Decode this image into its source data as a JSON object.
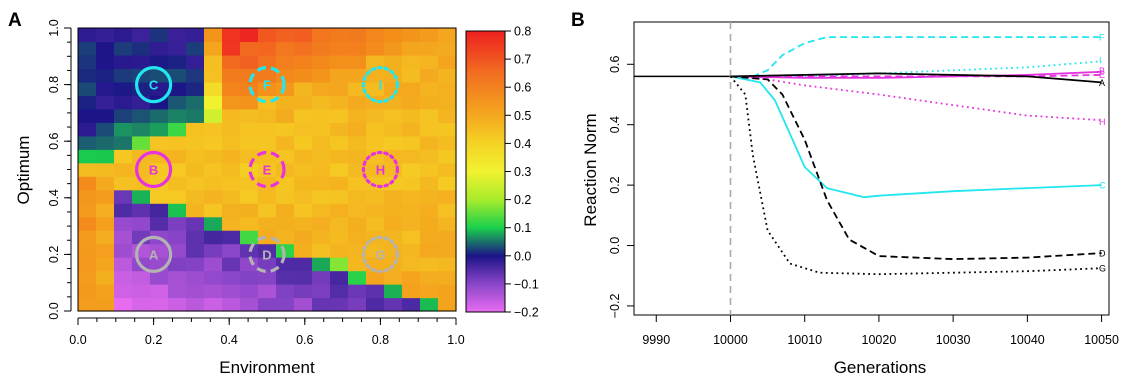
{
  "panels": {
    "a": "A",
    "b": "B"
  },
  "colors": {
    "cyan": "#22e6f0",
    "magenta": "#e633e0",
    "gray": "#b3b3b3",
    "black": "#000000",
    "vline": "#aaaaaa"
  },
  "chart_data": [
    {
      "type": "heatmap",
      "panel": "A",
      "xlabel": "Environment",
      "ylabel": "Optimum",
      "xlim": [
        0,
        1
      ],
      "ylim": [
        0,
        1
      ],
      "xticks": [
        0,
        0.2,
        0.4,
        0.6,
        0.8,
        1.0
      ],
      "xtick_labels": [
        "0.0",
        "0.2",
        "0.4",
        "0.6",
        "0.8",
        "1.0"
      ],
      "yticks": [
        0,
        0.2,
        0.4,
        0.6,
        0.8,
        1.0
      ],
      "ytick_labels": [
        "0.0",
        "0.2",
        "0.4",
        "0.6",
        "0.8",
        "1.0"
      ],
      "grid": "21x21 cells",
      "colorbar": {
        "range": [
          -0.2,
          0.8
        ],
        "ticks": [
          -0.2,
          -0.1,
          0.0,
          0.1,
          0.2,
          0.3,
          0.4,
          0.5,
          0.6,
          0.7,
          0.8
        ],
        "tick_labels": [
          "−0.2",
          "−0.1",
          "0.0",
          "0.1",
          "0.2",
          "0.3",
          "0.4",
          "0.5",
          "0.6",
          "0.7",
          "0.8"
        ]
      },
      "markers": [
        {
          "label": "C",
          "x": 0.2,
          "y": 0.8,
          "color": "cyan",
          "style": "solid"
        },
        {
          "label": "F",
          "x": 0.5,
          "y": 0.8,
          "color": "cyan",
          "style": "dashed"
        },
        {
          "label": "I",
          "x": 0.8,
          "y": 0.8,
          "color": "cyan",
          "style": "dotted"
        },
        {
          "label": "B",
          "x": 0.2,
          "y": 0.5,
          "color": "magenta",
          "style": "solid"
        },
        {
          "label": "E",
          "x": 0.5,
          "y": 0.5,
          "color": "magenta",
          "style": "dashed"
        },
        {
          "label": "H",
          "x": 0.8,
          "y": 0.5,
          "color": "magenta",
          "style": "dotted"
        },
        {
          "label": "A",
          "x": 0.2,
          "y": 0.2,
          "color": "gray",
          "style": "solid"
        },
        {
          "label": "D",
          "x": 0.5,
          "y": 0.2,
          "color": "gray",
          "style": "dashed"
        },
        {
          "label": "G",
          "x": 0.8,
          "y": 0.2,
          "color": "gray",
          "style": "dotted"
        }
      ]
    },
    {
      "type": "line",
      "panel": "B",
      "xlabel": "Generations",
      "ylabel": "Reaction Norm",
      "xlim": [
        9987,
        10051
      ],
      "ylim": [
        -0.23,
        0.74
      ],
      "xticks": [
        9990,
        10000,
        10010,
        10020,
        10030,
        10040,
        10050
      ],
      "xtick_labels": [
        "9990",
        "10000",
        "10010",
        "10020",
        "10030",
        "10040",
        "10050"
      ],
      "yticks": [
        -0.2,
        0.0,
        0.2,
        0.4,
        0.6
      ],
      "ytick_labels": [
        "−0.2",
        "0.0",
        "0.2",
        "0.4",
        "0.6"
      ],
      "vline": 10000,
      "baseline": 0.56,
      "series": [
        {
          "name": "F",
          "color": "cyan",
          "style": "dashed",
          "points": [
            [
              10000,
              0.56
            ],
            [
              10003,
              0.56
            ],
            [
              10005,
              0.58
            ],
            [
              10007,
              0.63
            ],
            [
              10010,
              0.67
            ],
            [
              10013,
              0.69
            ],
            [
              10020,
              0.69
            ],
            [
              10030,
              0.69
            ],
            [
              10040,
              0.69
            ],
            [
              10050,
              0.69
            ]
          ],
          "label_y": 0.69
        },
        {
          "name": "I",
          "color": "cyan",
          "style": "dotted",
          "points": [
            [
              10000,
              0.56
            ],
            [
              10010,
              0.56
            ],
            [
              10020,
              0.57
            ],
            [
              10030,
              0.58
            ],
            [
              10040,
              0.59
            ],
            [
              10050,
              0.61
            ]
          ],
          "label_y": 0.615
        },
        {
          "name": "B",
          "color": "magenta",
          "style": "solid",
          "points": [
            [
              10000,
              0.56
            ],
            [
              10010,
              0.555
            ],
            [
              10020,
              0.555
            ],
            [
              10030,
              0.56
            ],
            [
              10040,
              0.565
            ],
            [
              10050,
              0.575
            ]
          ],
          "label_y": 0.58
        },
        {
          "name": "E",
          "color": "magenta",
          "style": "dashed",
          "points": [
            [
              10000,
              0.56
            ],
            [
              10010,
              0.56
            ],
            [
              10020,
              0.56
            ],
            [
              10030,
              0.56
            ],
            [
              10040,
              0.56
            ],
            [
              10050,
              0.565
            ]
          ],
          "label_y": 0.567
        },
        {
          "name": "A",
          "color": "black",
          "style": "solid",
          "points": [
            [
              10000,
              0.56
            ],
            [
              10010,
              0.565
            ],
            [
              10020,
              0.57
            ],
            [
              10030,
              0.565
            ],
            [
              10040,
              0.56
            ],
            [
              10050,
              0.54
            ]
          ],
          "label_y": 0.54
        },
        {
          "name": "H",
          "color": "magenta",
          "style": "dotted",
          "points": [
            [
              10000,
              0.56
            ],
            [
              10005,
              0.55
            ],
            [
              10010,
              0.53
            ],
            [
              10020,
              0.5
            ],
            [
              10030,
              0.465
            ],
            [
              10040,
              0.43
            ],
            [
              10050,
              0.415
            ]
          ],
          "label_y": 0.41
        },
        {
          "name": "C",
          "color": "cyan",
          "style": "solid",
          "points": [
            [
              10000,
              0.56
            ],
            [
              10004,
              0.54
            ],
            [
              10006,
              0.48
            ],
            [
              10008,
              0.37
            ],
            [
              10010,
              0.26
            ],
            [
              10013,
              0.19
            ],
            [
              10018,
              0.16
            ],
            [
              10020,
              0.165
            ],
            [
              10030,
              0.18
            ],
            [
              10040,
              0.19
            ],
            [
              10050,
              0.2
            ]
          ],
          "label_y": 0.2
        },
        {
          "name": "D",
          "color": "black",
          "style": "dashed",
          "points": [
            [
              10000,
              0.56
            ],
            [
              10005,
              0.55
            ],
            [
              10007,
              0.5
            ],
            [
              10010,
              0.35
            ],
            [
              10013,
              0.15
            ],
            [
              10016,
              0.02
            ],
            [
              10020,
              -0.035
            ],
            [
              10030,
              -0.045
            ],
            [
              10040,
              -0.04
            ],
            [
              10050,
              -0.025
            ]
          ],
          "label_y": -0.025
        },
        {
          "name": "G",
          "color": "black",
          "style": "dotted",
          "points": [
            [
              10000,
              0.56
            ],
            [
              10002,
              0.5
            ],
            [
              10003,
              0.3
            ],
            [
              10005,
              0.05
            ],
            [
              10008,
              -0.06
            ],
            [
              10012,
              -0.09
            ],
            [
              10020,
              -0.095
            ],
            [
              10030,
              -0.09
            ],
            [
              10040,
              -0.085
            ],
            [
              10050,
              -0.075
            ]
          ],
          "label_y": -0.075
        }
      ]
    }
  ]
}
